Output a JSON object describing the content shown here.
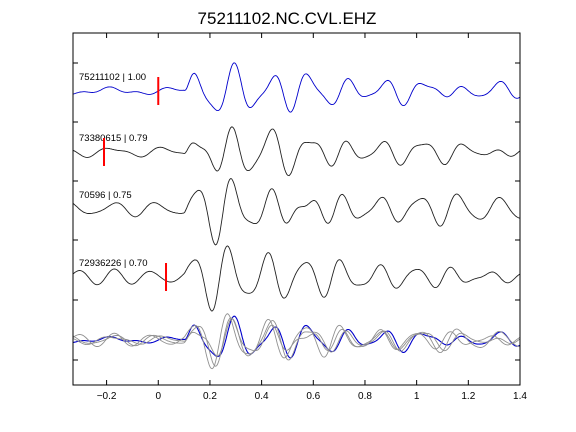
{
  "chart_data": {
    "type": "line",
    "title": "75211102.NC.CVL.EHZ",
    "xlabel": "",
    "ylabel": "",
    "xlim": [
      -0.33,
      1.4
    ],
    "x_ticks": [
      -0.2,
      0,
      0.2,
      0.4,
      0.6,
      0.8,
      1,
      1.2,
      1.4
    ],
    "x_tick_labels": [
      "−0.2",
      "0",
      "0.2",
      "0.4",
      "0.6",
      "0.8",
      "1",
      "1.2",
      "1.4"
    ],
    "grid": false,
    "legend": "none",
    "colors": {
      "reference": "#0000cc",
      "trace": "#222222",
      "stack": "#909090",
      "pick": "#ff0000"
    },
    "traces": [
      {
        "label": "75211102 | 1.00",
        "color": "#0000cc",
        "pick_time": 0.0
      },
      {
        "label": "73380615 | 0.79",
        "color": "#222222",
        "pick_time": -0.21
      },
      {
        "label": "70596 | 0.75",
        "color": "#222222",
        "pick_time": null
      },
      {
        "label": "72936226 | 0.70",
        "color": "#222222",
        "pick_time": 0.03
      }
    ],
    "stack_label": ""
  }
}
